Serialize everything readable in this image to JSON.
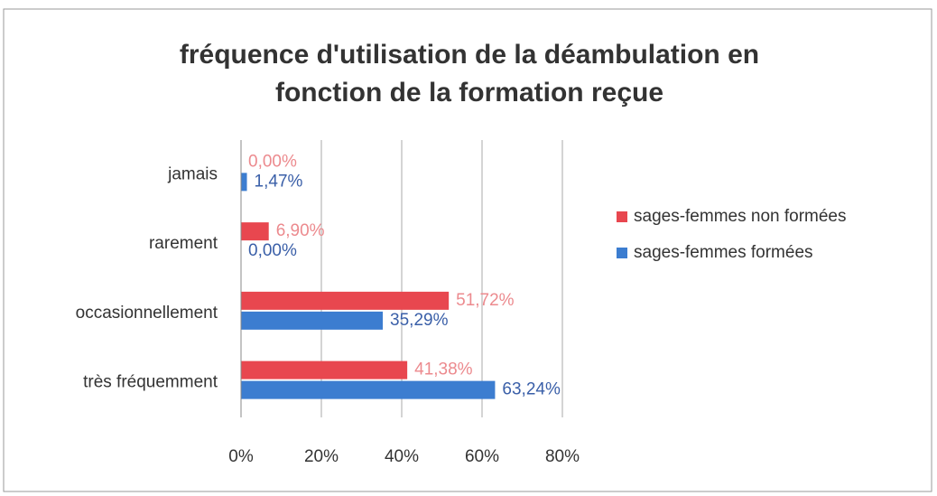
{
  "chart_data": {
    "type": "bar",
    "orientation": "horizontal",
    "title": "fréquence d'utilisation de la déambulation en fonction de la formation reçue",
    "categories": [
      "jamais",
      "rarement",
      "occasionnellement",
      "très fréquemment"
    ],
    "series": [
      {
        "name": "sages-femmes non formées",
        "color": "#e8474f",
        "label_color": "#ec8a8e",
        "values": [
          0,
          6.9,
          51.72,
          41.38
        ],
        "value_labels": [
          "0,00%",
          "6,90%",
          "51,72%",
          "41,38%"
        ]
      },
      {
        "name": "sages-femmes formées",
        "color": "#3c7dd0",
        "label_color": "#3a5fa8",
        "values": [
          1.47,
          0,
          35.29,
          63.24
        ],
        "value_labels": [
          "1,47%",
          "0,00%",
          "35,29%",
          "63,24%"
        ]
      }
    ],
    "xlim": [
      0,
      80
    ],
    "xticks": [
      {
        "value": 0,
        "label": "0%"
      },
      {
        "value": 20,
        "label": "20%"
      },
      {
        "value": 40,
        "label": "40%"
      },
      {
        "value": 60,
        "label": "60%"
      },
      {
        "value": 80,
        "label": "80%"
      }
    ],
    "grid": true,
    "legend": "right"
  }
}
